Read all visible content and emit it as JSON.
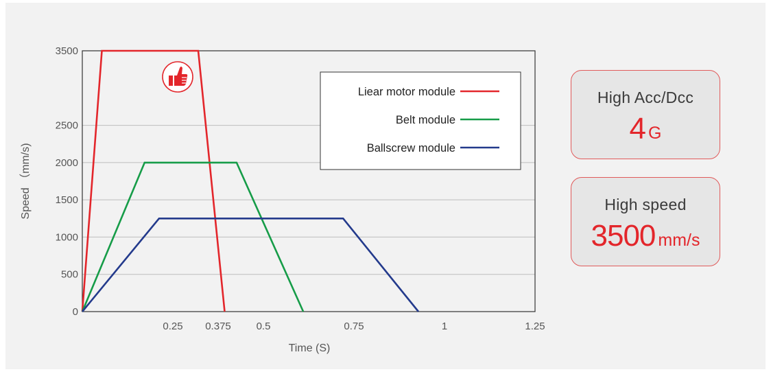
{
  "chart_data": {
    "type": "line",
    "xlabel": "Time (S)",
    "ylabel": "Speed （mm/s)",
    "xlim": [
      0,
      1.25
    ],
    "ylim": [
      0,
      3500
    ],
    "x_ticks": [
      {
        "value": 0.25,
        "label": "0.25"
      },
      {
        "value": 0.375,
        "label": "0.375"
      },
      {
        "value": 0.5,
        "label": "0.5"
      },
      {
        "value": 0.75,
        "label": "0.75"
      },
      {
        "value": 1,
        "label": "1"
      },
      {
        "value": 1.25,
        "label": "1.25"
      }
    ],
    "y_ticks": [
      {
        "value": 0,
        "label": "0"
      },
      {
        "value": 500,
        "label": "500"
      },
      {
        "value": 1000,
        "label": "1000"
      },
      {
        "value": 1500,
        "label": "1500"
      },
      {
        "value": 2000,
        "label": "2000"
      },
      {
        "value": 2500,
        "label": "2500"
      },
      {
        "value": 3500,
        "label": "3500"
      }
    ],
    "grid": "horizontal",
    "legend_position": "top-right",
    "series": [
      {
        "name": "Liear motor module",
        "color": "#e3262b",
        "x": [
          0,
          0.054,
          0.32,
          0.393
        ],
        "y": [
          0,
          3500,
          3500,
          0
        ]
      },
      {
        "name": "Belt module",
        "color": "#169c48",
        "x": [
          0,
          0.172,
          0.426,
          0.61
        ],
        "y": [
          0,
          2000,
          2000,
          0
        ]
      },
      {
        "name": "Ballscrew module",
        "color": "#233a8c",
        "x": [
          0,
          0.212,
          0.72,
          0.928
        ],
        "y": [
          0,
          1250,
          1250,
          0
        ]
      }
    ],
    "annotation_icon": "thumbs-up-icon"
  },
  "cards": [
    {
      "title": "High Acc/Dcc",
      "value": "4",
      "unit": "G"
    },
    {
      "title": "High speed",
      "value": "3500",
      "unit": "mm/s"
    }
  ],
  "colors": {
    "accent": "#e3262b",
    "card_border": "#e05a5a"
  }
}
